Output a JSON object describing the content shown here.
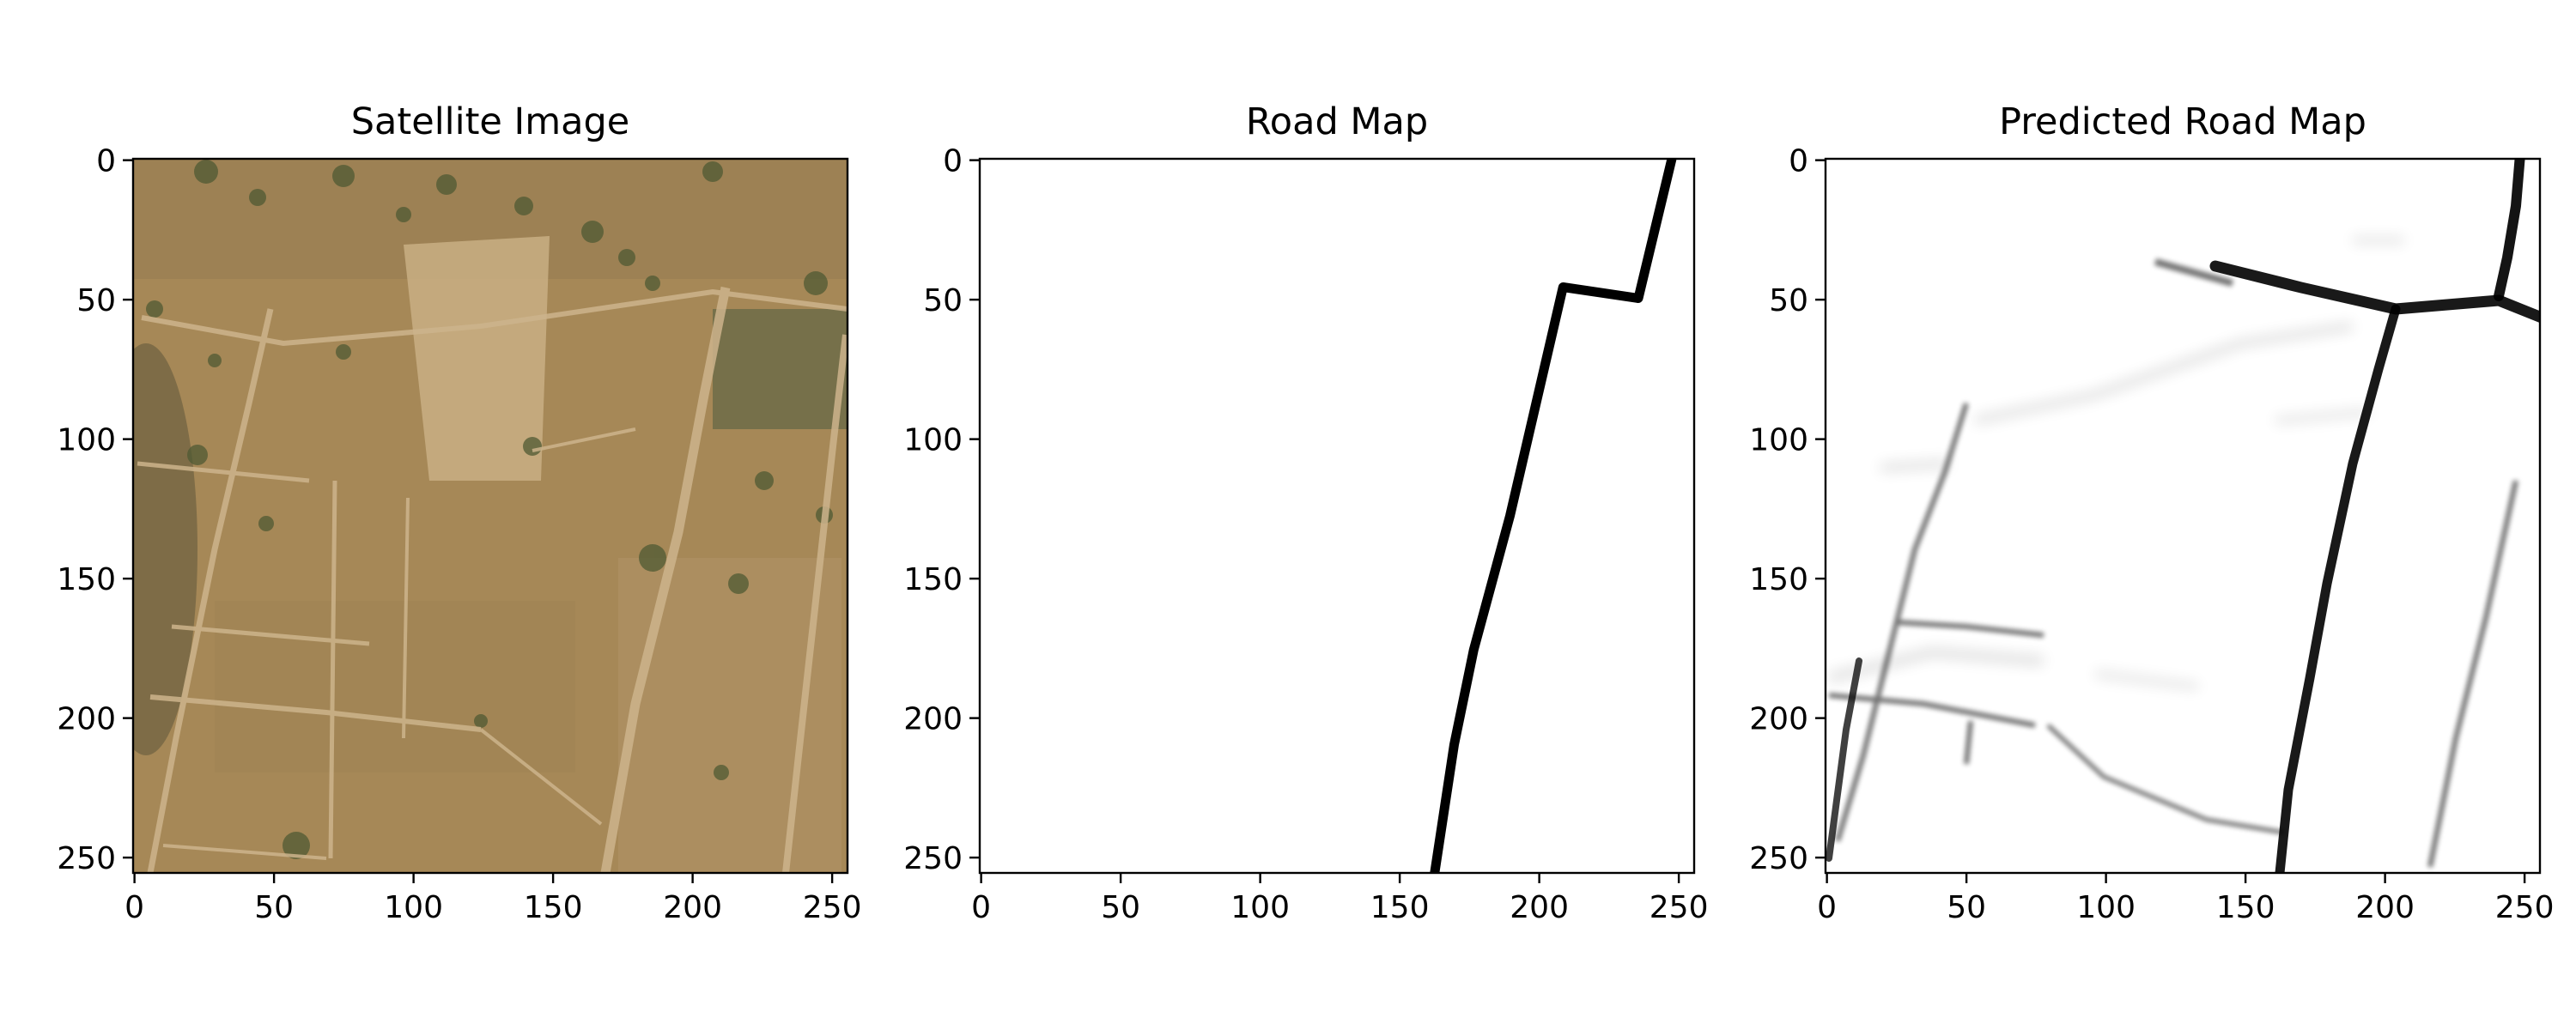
{
  "panels": [
    {
      "title": "Satellite Image",
      "x_ticks": [
        "0",
        "50",
        "100",
        "150",
        "200",
        "250"
      ],
      "y_ticks": [
        "0",
        "50",
        "100",
        "150",
        "200",
        "250"
      ],
      "x_values": [
        0,
        50,
        100,
        150,
        200,
        250
      ],
      "y_values": [
        0,
        50,
        100,
        150,
        200,
        250
      ]
    },
    {
      "title": "Road Map",
      "x_ticks": [
        "0",
        "50",
        "100",
        "150",
        "200",
        "250"
      ],
      "y_ticks": [
        "0",
        "50",
        "100",
        "150",
        "200",
        "250"
      ],
      "x_values": [
        0,
        50,
        100,
        150,
        200,
        250
      ],
      "y_values": [
        0,
        50,
        100,
        150,
        200,
        250
      ],
      "road_path": [
        [
          248,
          0
        ],
        [
          236,
          50
        ],
        [
          209,
          46
        ],
        [
          190,
          128
        ],
        [
          177,
          176
        ],
        [
          170,
          210
        ],
        [
          163,
          256
        ]
      ]
    },
    {
      "title": "Predicted Road Map",
      "x_ticks": [
        "0",
        "50",
        "100",
        "150",
        "200",
        "250"
      ],
      "y_ticks": [
        "0",
        "50",
        "100",
        "150",
        "200",
        "250"
      ],
      "x_values": [
        0,
        50,
        100,
        150,
        200,
        250
      ],
      "y_values": [
        0,
        50,
        100,
        150,
        200,
        250
      ]
    }
  ],
  "colors": {
    "ground": "#a88a5a",
    "road_mask": "#000000",
    "background": "#ffffff"
  }
}
